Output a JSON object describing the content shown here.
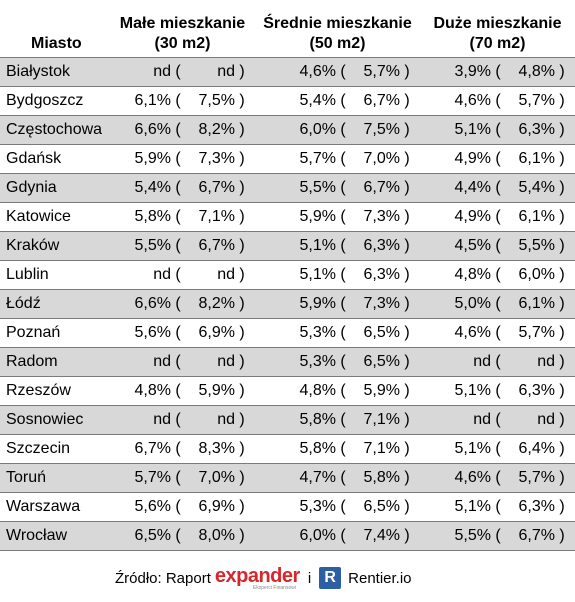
{
  "headers": {
    "city": "Miasto",
    "small": [
      "Małe mieszkanie",
      "(30 m2)"
    ],
    "medium": [
      "Średnie mieszkanie",
      "(50 m2)"
    ],
    "large": [
      "Duże mieszkanie",
      "(70 m2)"
    ]
  },
  "rows": [
    {
      "city": "Białystok",
      "small": [
        "nd",
        "nd"
      ],
      "medium": [
        "4,6%",
        "5,7%"
      ],
      "large": [
        "3,9%",
        "4,8%"
      ]
    },
    {
      "city": "Bydgoszcz",
      "small": [
        "6,1%",
        "7,5%"
      ],
      "medium": [
        "5,4%",
        "6,7%"
      ],
      "large": [
        "4,6%",
        "5,7%"
      ]
    },
    {
      "city": "Częstochowa",
      "small": [
        "6,6%",
        "8,2%"
      ],
      "medium": [
        "6,0%",
        "7,5%"
      ],
      "large": [
        "5,1%",
        "6,3%"
      ]
    },
    {
      "city": "Gdańsk",
      "small": [
        "5,9%",
        "7,3%"
      ],
      "medium": [
        "5,7%",
        "7,0%"
      ],
      "large": [
        "4,9%",
        "6,1%"
      ]
    },
    {
      "city": "Gdynia",
      "small": [
        "5,4%",
        "6,7%"
      ],
      "medium": [
        "5,5%",
        "6,7%"
      ],
      "large": [
        "4,4%",
        "5,4%"
      ]
    },
    {
      "city": "Katowice",
      "small": [
        "5,8%",
        "7,1%"
      ],
      "medium": [
        "5,9%",
        "7,3%"
      ],
      "large": [
        "4,9%",
        "6,1%"
      ]
    },
    {
      "city": "Kraków",
      "small": [
        "5,5%",
        "6,7%"
      ],
      "medium": [
        "5,1%",
        "6,3%"
      ],
      "large": [
        "4,5%",
        "5,5%"
      ]
    },
    {
      "city": "Lublin",
      "small": [
        "nd",
        "nd"
      ],
      "medium": [
        "5,1%",
        "6,3%"
      ],
      "large": [
        "4,8%",
        "6,0%"
      ]
    },
    {
      "city": "Łódź",
      "small": [
        "6,6%",
        "8,2%"
      ],
      "medium": [
        "5,9%",
        "7,3%"
      ],
      "large": [
        "5,0%",
        "6,1%"
      ]
    },
    {
      "city": "Poznań",
      "small": [
        "5,6%",
        "6,9%"
      ],
      "medium": [
        "5,3%",
        "6,5%"
      ],
      "large": [
        "4,6%",
        "5,7%"
      ]
    },
    {
      "city": "Radom",
      "small": [
        "nd",
        "nd"
      ],
      "medium": [
        "5,3%",
        "6,5%"
      ],
      "large": [
        "nd",
        "nd"
      ]
    },
    {
      "city": "Rzeszów",
      "small": [
        "4,8%",
        "5,9%"
      ],
      "medium": [
        "4,8%",
        "5,9%"
      ],
      "large": [
        "5,1%",
        "6,3%"
      ]
    },
    {
      "city": "Sosnowiec",
      "small": [
        "nd",
        "nd"
      ],
      "medium": [
        "5,8%",
        "7,1%"
      ],
      "large": [
        "nd",
        "nd"
      ]
    },
    {
      "city": "Szczecin",
      "small": [
        "6,7%",
        "8,3%"
      ],
      "medium": [
        "5,8%",
        "7,1%"
      ],
      "large": [
        "5,1%",
        "6,4%"
      ]
    },
    {
      "city": "Toruń",
      "small": [
        "5,7%",
        "7,0%"
      ],
      "medium": [
        "4,7%",
        "5,8%"
      ],
      "large": [
        "4,6%",
        "5,7%"
      ]
    },
    {
      "city": "Warszawa",
      "small": [
        "5,6%",
        "6,9%"
      ],
      "medium": [
        "5,3%",
        "6,5%"
      ],
      "large": [
        "5,1%",
        "6,3%"
      ]
    },
    {
      "city": "Wrocław",
      "small": [
        "6,5%",
        "8,0%"
      ],
      "medium": [
        "6,0%",
        "7,4%"
      ],
      "large": [
        "5,5%",
        "6,7%"
      ]
    }
  ],
  "footer": {
    "source_label": "Źródło: Raport",
    "expander_e": "e",
    "expander_rest": "xpander",
    "expander_tagline": "Eksperci Finansowi",
    "conjunction": "i",
    "rentier_icon_letter": "R",
    "rentier_name": "Rentier.io",
    "brand_colors": {
      "expander": "#d9262c",
      "rentier": "#2d5fa5"
    }
  }
}
